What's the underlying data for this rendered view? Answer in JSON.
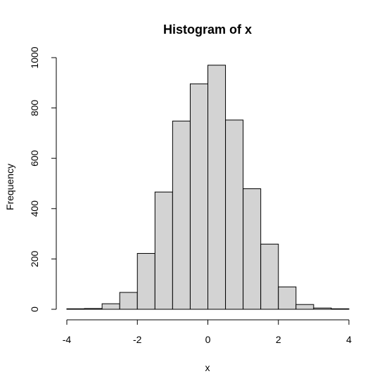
{
  "chart_data": {
    "type": "bar",
    "title": "Histogram of x",
    "xlabel": "x",
    "ylabel": "Frequency",
    "bins": [
      {
        "x0": -4.0,
        "x1": -3.5,
        "count": 2
      },
      {
        "x0": -3.5,
        "x1": -3.0,
        "count": 3
      },
      {
        "x0": -3.0,
        "x1": -2.5,
        "count": 22
      },
      {
        "x0": -2.5,
        "x1": -2.0,
        "count": 67
      },
      {
        "x0": -2.0,
        "x1": -1.5,
        "count": 222
      },
      {
        "x0": -1.5,
        "x1": -1.0,
        "count": 466
      },
      {
        "x0": -1.0,
        "x1": -0.5,
        "count": 748
      },
      {
        "x0": -0.5,
        "x1": 0.0,
        "count": 896
      },
      {
        "x0": 0.0,
        "x1": 0.5,
        "count": 970
      },
      {
        "x0": 0.5,
        "x1": 1.0,
        "count": 752
      },
      {
        "x0": 1.0,
        "x1": 1.5,
        "count": 479
      },
      {
        "x0": 1.5,
        "x1": 2.0,
        "count": 259
      },
      {
        "x0": 2.0,
        "x1": 2.5,
        "count": 89
      },
      {
        "x0": 2.5,
        "x1": 3.0,
        "count": 19
      },
      {
        "x0": 3.0,
        "x1": 3.5,
        "count": 5
      },
      {
        "x0": 3.5,
        "x1": 4.0,
        "count": 2
      }
    ],
    "x_ticks": [
      -4,
      -2,
      0,
      2,
      4
    ],
    "y_ticks": [
      0,
      200,
      400,
      600,
      800,
      1000
    ],
    "xlim": [
      -4,
      4
    ],
    "ylim": [
      0,
      1000
    ],
    "bar_fill": "#d3d3d3",
    "bar_stroke": "#000000",
    "grid": false
  }
}
